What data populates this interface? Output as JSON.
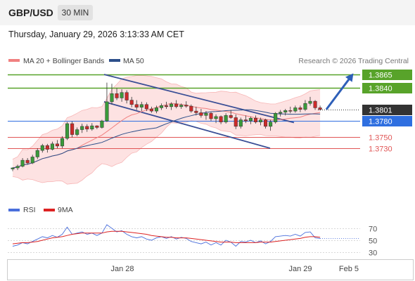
{
  "header": {
    "pair": "GBP/USD",
    "timeframe": "30 MIN"
  },
  "timestamp": "Thursday, January 29, 2026 3:13:33 AM CET",
  "credit": "Research © 2026 Trading Central",
  "legend": {
    "bollinger": {
      "label": "MA 20 + Bollinger Bands",
      "color": "#f08080"
    },
    "ma50": {
      "label": "MA 50",
      "color": "#2c4f8a"
    }
  },
  "levels": [
    {
      "value": 1.3865,
      "label": "1.3865",
      "kind": "resistance",
      "color": "#58a32a"
    },
    {
      "value": 1.384,
      "label": "1.3840",
      "kind": "resistance",
      "color": "#58a32a"
    },
    {
      "value": 1.3801,
      "label": "1.3801",
      "kind": "last",
      "color": "#333333"
    },
    {
      "value": 1.378,
      "label": "1.3780",
      "kind": "pivot",
      "color": "#2f6fe0"
    },
    {
      "value": 1.375,
      "label": "1.3750",
      "kind": "support",
      "color": "#e05555"
    },
    {
      "value": 1.373,
      "label": "1.3730",
      "kind": "support",
      "color": "#e05555"
    }
  ],
  "rsi_panel": {
    "legend_rsi": "RSI",
    "legend_ma": "9MA",
    "rsi_color": "#4a6fdc",
    "ma_color": "#dd2222",
    "ticks": [
      "70",
      "50",
      "30"
    ],
    "tick_values": [
      70,
      50,
      30
    ]
  },
  "x_axis": {
    "labels": [
      "Jan 28",
      "Jan 29",
      "Feb 5"
    ]
  },
  "chart_data": {
    "type": "candlestick",
    "y_range": [
      1.368,
      1.3875
    ],
    "up_color": "#3a9a3a",
    "down_color": "#cc2a2a",
    "candles": [
      [
        1.3692,
        1.3695,
        1.3688,
        1.3694
      ],
      [
        1.3694,
        1.37,
        1.369,
        1.3697
      ],
      [
        1.3697,
        1.3712,
        1.3695,
        1.3708
      ],
      [
        1.3708,
        1.3712,
        1.37,
        1.3703
      ],
      [
        1.3703,
        1.3718,
        1.3701,
        1.3714
      ],
      [
        1.3714,
        1.373,
        1.371,
        1.3726
      ],
      [
        1.3726,
        1.3738,
        1.3722,
        1.3735
      ],
      [
        1.3735,
        1.3738,
        1.3722,
        1.3728
      ],
      [
        1.3728,
        1.3742,
        1.3726,
        1.3738
      ],
      [
        1.3738,
        1.3745,
        1.373,
        1.3734
      ],
      [
        1.3734,
        1.3752,
        1.373,
        1.3748
      ],
      [
        1.3748,
        1.3778,
        1.3745,
        1.3775
      ],
      [
        1.3775,
        1.3779,
        1.375,
        1.3755
      ],
      [
        1.3755,
        1.3768,
        1.3752,
        1.3764
      ],
      [
        1.3764,
        1.3775,
        1.3758,
        1.377
      ],
      [
        1.377,
        1.3774,
        1.376,
        1.3765
      ],
      [
        1.3765,
        1.3776,
        1.3762,
        1.3771
      ],
      [
        1.3771,
        1.3772,
        1.3765,
        1.3768
      ],
      [
        1.3768,
        1.3782,
        1.3766,
        1.378
      ],
      [
        1.378,
        1.385,
        1.3778,
        1.3815
      ],
      [
        1.3815,
        1.3848,
        1.381,
        1.383
      ],
      [
        1.383,
        1.384,
        1.3818,
        1.3822
      ],
      [
        1.3822,
        1.3838,
        1.3815,
        1.3832
      ],
      [
        1.3832,
        1.3836,
        1.3812,
        1.3818
      ],
      [
        1.3818,
        1.3824,
        1.3805,
        1.381
      ],
      [
        1.381,
        1.3818,
        1.38,
        1.3805
      ],
      [
        1.3805,
        1.3815,
        1.3798,
        1.381
      ],
      [
        1.381,
        1.3814,
        1.3798,
        1.3802
      ],
      [
        1.3802,
        1.3806,
        1.3795,
        1.3798
      ],
      [
        1.3798,
        1.3808,
        1.3794,
        1.3804
      ],
      [
        1.3804,
        1.3812,
        1.38,
        1.3808
      ],
      [
        1.3808,
        1.3815,
        1.3802,
        1.3806
      ],
      [
        1.3806,
        1.3814,
        1.38,
        1.3811
      ],
      [
        1.3811,
        1.3818,
        1.3803,
        1.3806
      ],
      [
        1.3806,
        1.3812,
        1.3802,
        1.3809
      ],
      [
        1.3809,
        1.3816,
        1.3804,
        1.3807
      ],
      [
        1.3807,
        1.381,
        1.3795,
        1.3798
      ],
      [
        1.3798,
        1.3806,
        1.379,
        1.3795
      ],
      [
        1.3795,
        1.3802,
        1.3786,
        1.379
      ],
      [
        1.379,
        1.3798,
        1.3782,
        1.3794
      ],
      [
        1.3794,
        1.3796,
        1.378,
        1.3784
      ],
      [
        1.3784,
        1.3792,
        1.3776,
        1.3788
      ],
      [
        1.3788,
        1.379,
        1.3774,
        1.3778
      ],
      [
        1.3778,
        1.3794,
        1.3775,
        1.379
      ],
      [
        1.379,
        1.38,
        1.3784,
        1.3786
      ],
      [
        1.3786,
        1.3792,
        1.3765,
        1.377
      ],
      [
        1.377,
        1.3786,
        1.3766,
        1.3782
      ],
      [
        1.3782,
        1.379,
        1.3776,
        1.378
      ],
      [
        1.378,
        1.3788,
        1.3774,
        1.3785
      ],
      [
        1.3785,
        1.379,
        1.3775,
        1.3778
      ],
      [
        1.3778,
        1.3786,
        1.3772,
        1.3782
      ],
      [
        1.3782,
        1.3784,
        1.3766,
        1.377
      ],
      [
        1.377,
        1.3782,
        1.3762,
        1.3778
      ],
      [
        1.3778,
        1.3796,
        1.3775,
        1.3794
      ],
      [
        1.3794,
        1.38,
        1.3788,
        1.3796
      ],
      [
        1.3796,
        1.3802,
        1.379,
        1.3799
      ],
      [
        1.3799,
        1.3806,
        1.3794,
        1.3798
      ],
      [
        1.3798,
        1.3808,
        1.3795,
        1.3804
      ],
      [
        1.3804,
        1.3808,
        1.3796,
        1.3801
      ],
      [
        1.3801,
        1.3818,
        1.3798,
        1.3812
      ],
      [
        1.3812,
        1.3824,
        1.3808,
        1.3816
      ],
      [
        1.3816,
        1.3818,
        1.38,
        1.3804
      ],
      [
        1.3804,
        1.3808,
        1.3799,
        1.3801
      ]
    ],
    "rsi": [
      40,
      42,
      46,
      44,
      48,
      52,
      56,
      54,
      58,
      55,
      60,
      72,
      60,
      62,
      64,
      60,
      62,
      58,
      62,
      76,
      70,
      64,
      66,
      60,
      56,
      54,
      56,
      52,
      50,
      54,
      56,
      53,
      56,
      52,
      55,
      53,
      48,
      46,
      44,
      47,
      42,
      46,
      42,
      50,
      47,
      40,
      48,
      47,
      50,
      46,
      49,
      44,
      48,
      56,
      57,
      58,
      57,
      60,
      57,
      63,
      64,
      54,
      53
    ],
    "rsi_ma": [
      44,
      45,
      46,
      46,
      47,
      48,
      50,
      52,
      54,
      55,
      56,
      58,
      60,
      61,
      62,
      62,
      62,
      62,
      62,
      64,
      65,
      65,
      65,
      64,
      63,
      62,
      61,
      60,
      58,
      57,
      56,
      55,
      55,
      54,
      54,
      54,
      53,
      52,
      51,
      50,
      49,
      48,
      47,
      47,
      47,
      46,
      46,
      46,
      46,
      46,
      47,
      47,
      47,
      48,
      49,
      50,
      51,
      52,
      53,
      55,
      56,
      56,
      55
    ]
  }
}
